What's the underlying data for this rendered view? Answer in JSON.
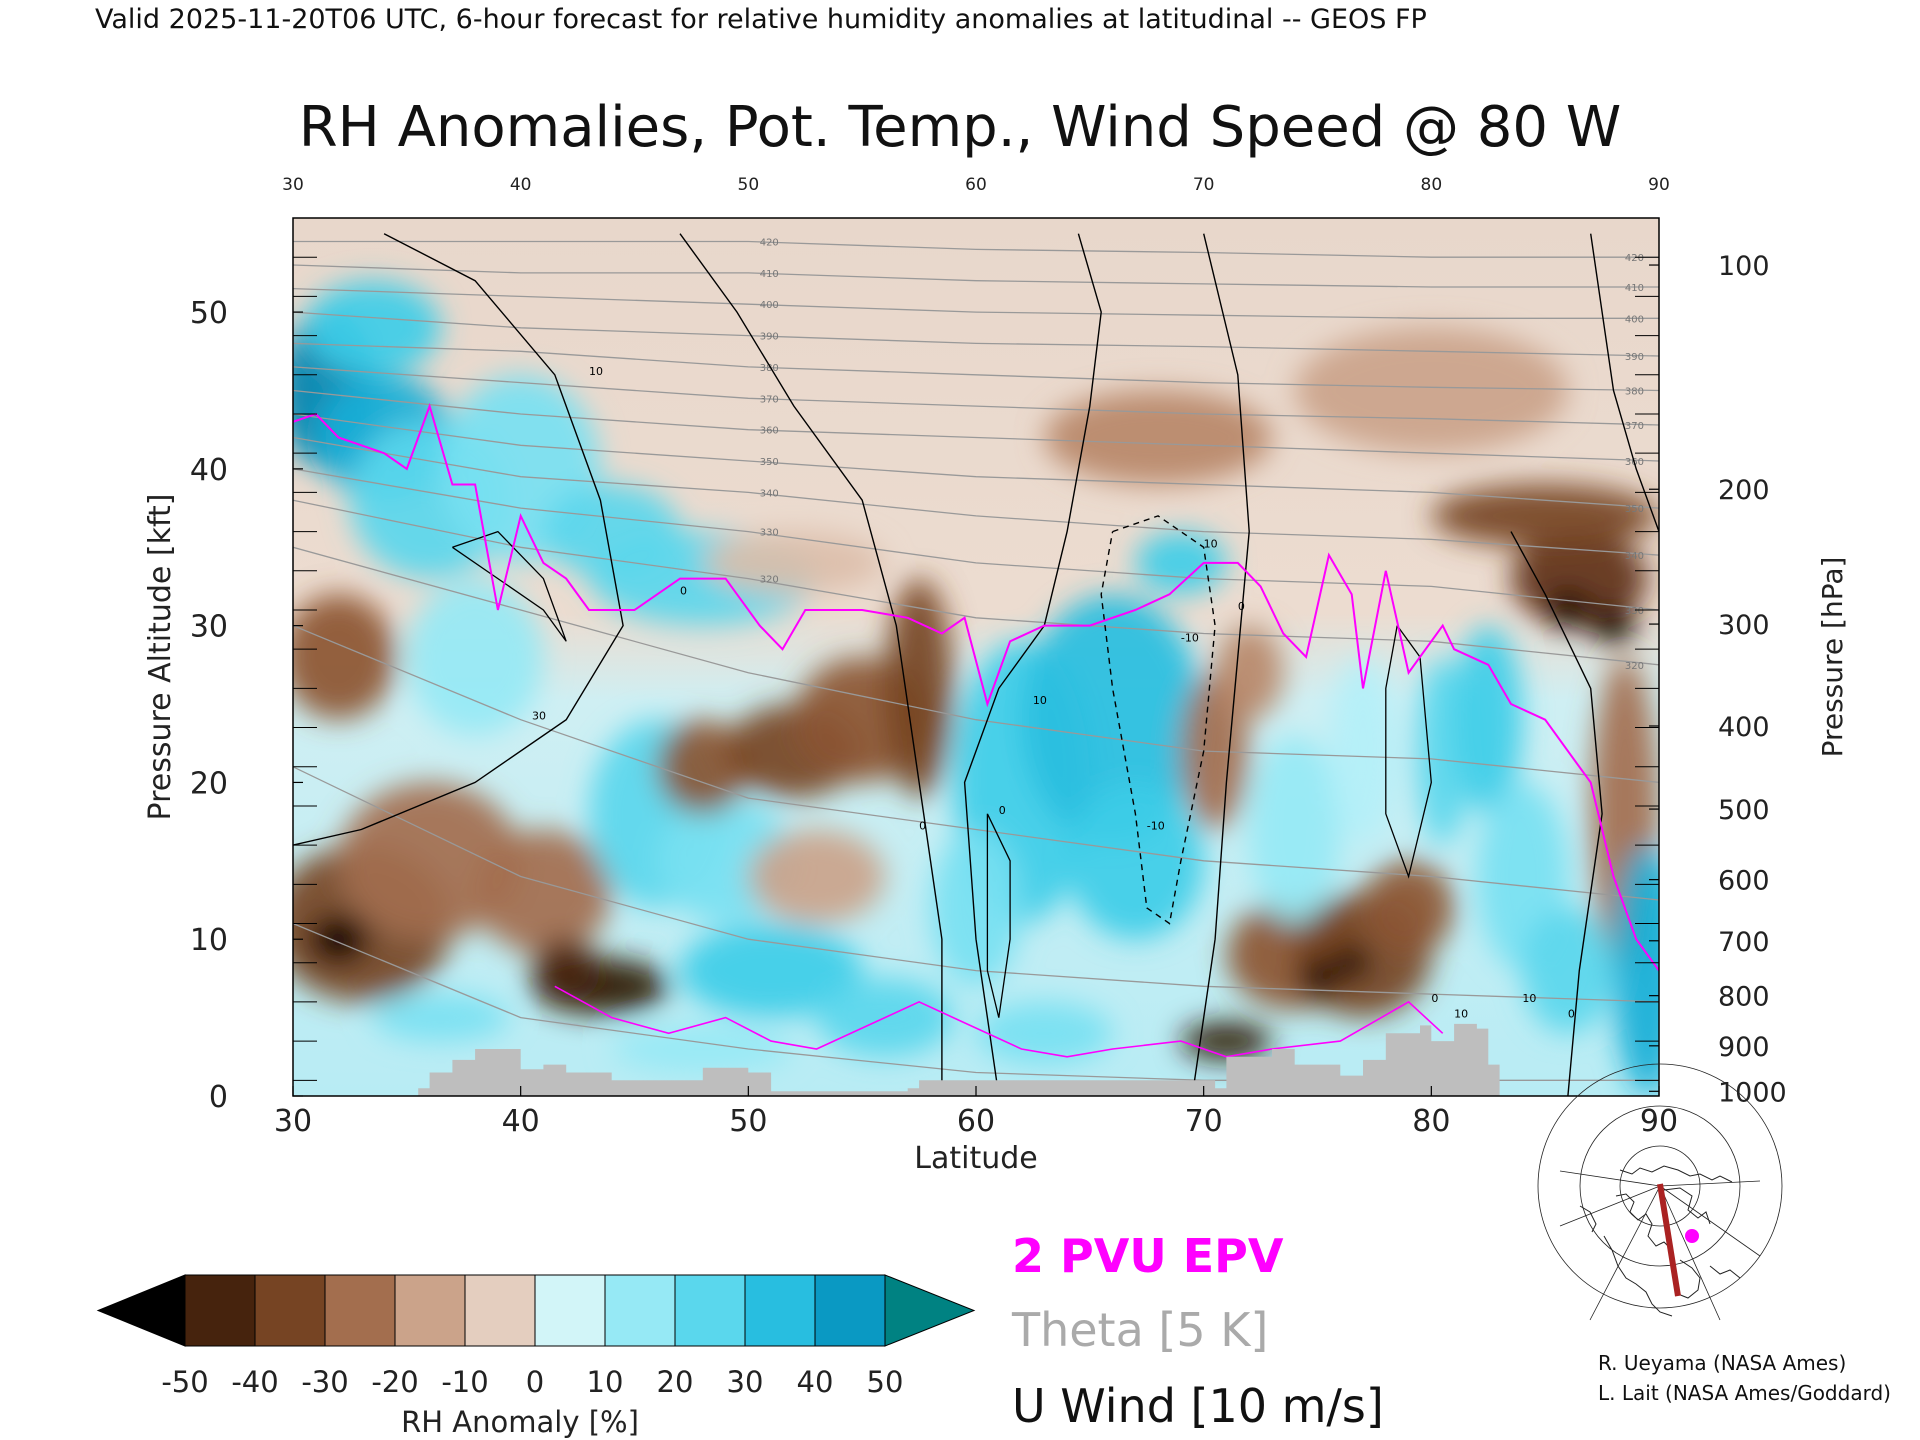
{
  "header": "Valid 2025-11-20T06 UTC, 6-hour forecast for relative humidity anomalies at latitudinal -- GEOS FP",
  "chart_data": {
    "type": "heatmap",
    "title": "RH Anomalies, Pot. Temp., Wind Speed @ 80 W",
    "xlabel": "Latitude",
    "ylabel": "Pressure Altitude [kft]",
    "y2label": "Pressure [hPa]",
    "xlim": [
      30,
      90
    ],
    "ylim": [
      0,
      56
    ],
    "x_ticks": [
      "30",
      "40",
      "50",
      "60",
      "70",
      "80",
      "90"
    ],
    "y_ticks": [
      "0",
      "10",
      "20",
      "30",
      "40",
      "50"
    ],
    "pressure_ticks": [
      {
        "hpa": "100",
        "kft": 53.0
      },
      {
        "hpa": "200",
        "kft": 38.7
      },
      {
        "hpa": "300",
        "kft": 30.1
      },
      {
        "hpa": "400",
        "kft": 23.6
      },
      {
        "hpa": "500",
        "kft": 18.3
      },
      {
        "hpa": "600",
        "kft": 13.8
      },
      {
        "hpa": "700",
        "kft": 9.9
      },
      {
        "hpa": "800",
        "kft": 6.4
      },
      {
        "hpa": "900",
        "kft": 3.2
      },
      {
        "hpa": "1000",
        "kft": 0.3
      }
    ],
    "theta_labels": [
      "420",
      "410",
      "400",
      "390",
      "380",
      "370",
      "360",
      "350",
      "340",
      "330",
      "320"
    ],
    "wind_labels": [
      "10",
      "0",
      "30",
      "0",
      "10",
      "0",
      "-10",
      "0",
      "10",
      "-10",
      "10",
      "0",
      "10",
      "0"
    ],
    "blobs": [
      {
        "x": 31.5,
        "y": 45,
        "rx": 2.2,
        "ry": 5,
        "v": 50
      },
      {
        "x": 34,
        "y": 42,
        "rx": 3,
        "ry": 4,
        "v": 40
      },
      {
        "x": 33.5,
        "y": 49,
        "rx": 3,
        "ry": 3,
        "v": 30
      },
      {
        "x": 36,
        "y": 38,
        "rx": 3.5,
        "ry": 5,
        "v": 25
      },
      {
        "x": 40,
        "y": 40,
        "rx": 3.5,
        "ry": 6,
        "v": 20
      },
      {
        "x": 44,
        "y": 36,
        "rx": 3,
        "ry": 3,
        "v": 25
      },
      {
        "x": 32,
        "y": 28,
        "rx": 2.5,
        "ry": 4,
        "v": -30
      },
      {
        "x": 38,
        "y": 28,
        "rx": 3,
        "ry": 5,
        "v": 15
      },
      {
        "x": 33,
        "y": 11,
        "rx": 4,
        "ry": 5,
        "v": -35
      },
      {
        "x": 36,
        "y": 15,
        "rx": 4,
        "ry": 5,
        "v": -25
      },
      {
        "x": 32,
        "y": 10,
        "rx": 1.3,
        "ry": 1.5,
        "v": -55
      },
      {
        "x": 41,
        "y": 13,
        "rx": 3,
        "ry": 4,
        "v": -25
      },
      {
        "x": 43.5,
        "y": 7,
        "rx": 3,
        "ry": 1.8,
        "v": -50
      },
      {
        "x": 42,
        "y": 8,
        "rx": 1.5,
        "ry": 2,
        "v": -45
      },
      {
        "x": 36.5,
        "y": 5,
        "rx": 3,
        "ry": 1.5,
        "v": 20
      },
      {
        "x": 48,
        "y": 3,
        "rx": 4,
        "ry": 1.5,
        "v": 15
      },
      {
        "x": 46,
        "y": 18,
        "rx": 3,
        "ry": 6,
        "v": 25
      },
      {
        "x": 49,
        "y": 15,
        "rx": 3,
        "ry": 4,
        "v": 20
      },
      {
        "x": 48,
        "y": 21,
        "rx": 2,
        "ry": 3,
        "v": -30
      },
      {
        "x": 52,
        "y": 22,
        "rx": 3,
        "ry": 3,
        "v": -35
      },
      {
        "x": 55,
        "y": 24,
        "rx": 3,
        "ry": 4,
        "v": -30
      },
      {
        "x": 57.5,
        "y": 26,
        "rx": 1.5,
        "ry": 7,
        "v": -35
      },
      {
        "x": 53,
        "y": 14,
        "rx": 3,
        "ry": 3,
        "v": -15
      },
      {
        "x": 51,
        "y": 8,
        "rx": 4,
        "ry": 3,
        "v": 30
      },
      {
        "x": 56,
        "y": 5,
        "rx": 3,
        "ry": 2.5,
        "v": 25
      },
      {
        "x": 48,
        "y": 33,
        "rx": 5,
        "ry": 3,
        "v": 25
      },
      {
        "x": 52,
        "y": 34,
        "rx": 4,
        "ry": 2,
        "v": -10
      },
      {
        "x": 62,
        "y": 20,
        "rx": 3,
        "ry": 9,
        "v": 30
      },
      {
        "x": 66,
        "y": 24,
        "rx": 4,
        "ry": 8,
        "v": 35
      },
      {
        "x": 67,
        "y": 15,
        "rx": 3,
        "ry": 5,
        "v": 30
      },
      {
        "x": 60,
        "y": 12,
        "rx": 2,
        "ry": 5,
        "v": 20
      },
      {
        "x": 63,
        "y": 4,
        "rx": 3,
        "ry": 2,
        "v": 20
      },
      {
        "x": 69,
        "y": 34,
        "rx": 2,
        "ry": 2,
        "v": 30
      },
      {
        "x": 70.5,
        "y": 22,
        "rx": 1.5,
        "ry": 5,
        "v": -25
      },
      {
        "x": 72,
        "y": 27,
        "rx": 1.5,
        "ry": 3,
        "v": -20
      },
      {
        "x": 74,
        "y": 9,
        "rx": 3,
        "ry": 3.5,
        "v": -30
      },
      {
        "x": 77,
        "y": 9,
        "rx": 3,
        "ry": 4,
        "v": -35
      },
      {
        "x": 79,
        "y": 12,
        "rx": 2,
        "ry": 3,
        "v": -30
      },
      {
        "x": 75,
        "y": 7.5,
        "rx": 0.8,
        "ry": 1.2,
        "v": -55
      },
      {
        "x": 76.5,
        "y": 8.5,
        "rx": 0.8,
        "ry": 1,
        "v": -55
      },
      {
        "x": 71,
        "y": 3.5,
        "rx": 2,
        "ry": 1.2,
        "v": -50
      },
      {
        "x": 74,
        "y": 17,
        "rx": 2,
        "ry": 6,
        "v": 15
      },
      {
        "x": 77,
        "y": 22,
        "rx": 1.5,
        "ry": 6,
        "v": 10
      },
      {
        "x": 80.5,
        "y": 22,
        "rx": 1.2,
        "ry": 6,
        "v": 25
      },
      {
        "x": 82.5,
        "y": 24,
        "rx": 1.5,
        "ry": 6,
        "v": 30
      },
      {
        "x": 84,
        "y": 14,
        "rx": 2,
        "ry": 6,
        "v": 20
      },
      {
        "x": 86.5,
        "y": 33,
        "rx": 3,
        "ry": 3,
        "v": -40
      },
      {
        "x": 86,
        "y": 31,
        "rx": 1,
        "ry": 1.2,
        "v": -55
      },
      {
        "x": 88,
        "y": 30,
        "rx": 1,
        "ry": 1.2,
        "v": -55
      },
      {
        "x": 85,
        "y": 37,
        "rx": 5,
        "ry": 2,
        "v": -35
      },
      {
        "x": 88.5,
        "y": 18,
        "rx": 1.5,
        "ry": 10,
        "v": -25
      },
      {
        "x": 89.5,
        "y": 8,
        "rx": 1.5,
        "ry": 8,
        "v": 40
      },
      {
        "x": 86,
        "y": 8,
        "rx": 2,
        "ry": 4,
        "v": 25
      },
      {
        "x": 68,
        "y": 42,
        "rx": 5,
        "ry": 3,
        "v": -20
      },
      {
        "x": 80,
        "y": 45,
        "rx": 6,
        "ry": 4,
        "v": -15
      }
    ],
    "epv_2pvu": [
      [
        30,
        43
      ],
      [
        31,
        43.5
      ],
      [
        32,
        42
      ],
      [
        34,
        41
      ],
      [
        35,
        40
      ],
      [
        36,
        44
      ],
      [
        37,
        39
      ],
      [
        38,
        39
      ],
      [
        39,
        31
      ],
      [
        40,
        37
      ],
      [
        41,
        34
      ],
      [
        42,
        33
      ],
      [
        43,
        31
      ],
      [
        45,
        31
      ],
      [
        47,
        33
      ],
      [
        49,
        33
      ],
      [
        50.5,
        30
      ],
      [
        51.5,
        28.5
      ],
      [
        52.5,
        31
      ],
      [
        55,
        31
      ],
      [
        57,
        30.5
      ],
      [
        58.5,
        29.5
      ],
      [
        59.5,
        30.5
      ],
      [
        60.5,
        25
      ],
      [
        61.5,
        29
      ],
      [
        63,
        30
      ],
      [
        65,
        30
      ],
      [
        67,
        31
      ],
      [
        68.5,
        32
      ],
      [
        70,
        34
      ],
      [
        71.5,
        34
      ],
      [
        72.5,
        32.5
      ],
      [
        73.5,
        29.5
      ],
      [
        74.5,
        28
      ],
      [
        75.5,
        34.5
      ],
      [
        76.5,
        32
      ],
      [
        77,
        26
      ],
      [
        78,
        33.5
      ],
      [
        79,
        27
      ],
      [
        80.5,
        30
      ],
      [
        81,
        28.5
      ],
      [
        82.5,
        27.5
      ],
      [
        83.5,
        25
      ],
      [
        85,
        24
      ],
      [
        86,
        22
      ],
      [
        87,
        20
      ],
      [
        88,
        14
      ],
      [
        89,
        10
      ],
      [
        90,
        8
      ]
    ],
    "epv_2pvu_low": [
      [
        41.5,
        7
      ],
      [
        44,
        5
      ],
      [
        46.5,
        4
      ],
      [
        49,
        5
      ],
      [
        51,
        3.5
      ],
      [
        53,
        3
      ],
      [
        56,
        5
      ],
      [
        57.5,
        6
      ],
      [
        59,
        5
      ],
      [
        62,
        3
      ],
      [
        64,
        2.5
      ],
      [
        66,
        3
      ],
      [
        69,
        3.5
      ],
      [
        71,
        2.5
      ],
      [
        73,
        3
      ],
      [
        76,
        3.5
      ],
      [
        79,
        6
      ],
      [
        80.5,
        4
      ]
    ],
    "u_wind_contours": [
      [
        [
          34,
          55
        ],
        [
          38,
          52
        ],
        [
          41.5,
          46
        ],
        [
          43.5,
          38
        ],
        [
          44.5,
          30
        ],
        [
          42,
          24
        ],
        [
          38,
          20
        ],
        [
          33,
          17
        ],
        [
          30,
          16
        ]
      ],
      [
        [
          47,
          55
        ],
        [
          49.5,
          50
        ],
        [
          52,
          44
        ],
        [
          55,
          38
        ],
        [
          56.5,
          30
        ],
        [
          57.5,
          20
        ],
        [
          58.5,
          10
        ],
        [
          58.5,
          0
        ]
      ],
      [
        [
          64.5,
          55
        ],
        [
          65.5,
          50
        ],
        [
          65,
          44
        ],
        [
          64,
          36
        ],
        [
          63,
          30
        ],
        [
          61,
          26
        ],
        [
          59.5,
          20
        ],
        [
          60,
          10
        ],
        [
          61,
          0
        ]
      ],
      [
        [
          70,
          55
        ],
        [
          71.5,
          46
        ],
        [
          72,
          36
        ],
        [
          71.5,
          28
        ],
        [
          71,
          20
        ],
        [
          70.5,
          10
        ],
        [
          69.5,
          0
        ]
      ],
      [
        [
          87,
          55
        ],
        [
          88,
          45
        ],
        [
          89,
          40
        ],
        [
          90,
          36
        ]
      ],
      [
        [
          83.5,
          36
        ],
        [
          85,
          32
        ],
        [
          87,
          26
        ],
        [
          87.5,
          18
        ],
        [
          86.5,
          8
        ],
        [
          86,
          0
        ]
      ]
    ],
    "u_wind_negative": [
      [
        [
          66,
          36
        ],
        [
          68,
          37
        ],
        [
          70,
          35
        ],
        [
          70.5,
          30
        ],
        [
          70,
          22
        ],
        [
          69,
          15
        ],
        [
          68.5,
          11
        ],
        [
          67.5,
          12
        ],
        [
          67,
          18
        ],
        [
          66,
          26
        ],
        [
          65.5,
          32
        ],
        [
          66,
          36
        ]
      ]
    ],
    "u_wind_small": [
      [
        [
          60.5,
          18
        ],
        [
          61.5,
          15
        ],
        [
          61.5,
          10
        ],
        [
          61,
          5
        ],
        [
          60.5,
          8
        ],
        [
          60.5,
          14
        ],
        [
          60.5,
          18
        ]
      ],
      [
        [
          37,
          35
        ],
        [
          39,
          33
        ],
        [
          41,
          31
        ],
        [
          42,
          29
        ],
        [
          41,
          33
        ],
        [
          39,
          36
        ],
        [
          37,
          35
        ]
      ],
      [
        [
          78.5,
          30
        ],
        [
          79.5,
          28
        ],
        [
          80,
          20
        ],
        [
          79,
          14
        ],
        [
          78,
          18
        ],
        [
          78,
          26
        ],
        [
          78.5,
          30
        ]
      ]
    ],
    "theta_lines": [
      {
        "theta": 420,
        "kft": [
          54.5,
          54.5,
          54.5,
          54.0,
          53.8,
          53.5,
          53.5
        ]
      },
      {
        "theta": 410,
        "kft": [
          53.0,
          52.5,
          52.5,
          52.0,
          51.8,
          51.6,
          51.6
        ]
      },
      {
        "theta": 400,
        "kft": [
          51.5,
          51.0,
          50.5,
          50.0,
          49.8,
          49.6,
          49.6
        ]
      },
      {
        "theta": 390,
        "kft": [
          50.0,
          49.0,
          48.5,
          48.0,
          47.8,
          47.5,
          47.2
        ]
      },
      {
        "theta": 380,
        "kft": [
          48.0,
          47.5,
          46.5,
          46.0,
          45.5,
          45.2,
          45.0
        ]
      },
      {
        "theta": 370,
        "kft": [
          46.5,
          45.5,
          44.5,
          44.0,
          43.5,
          43.2,
          42.8
        ]
      },
      {
        "theta": 360,
        "kft": [
          45.0,
          43.5,
          42.5,
          42.0,
          41.5,
          41.0,
          40.5
        ]
      },
      {
        "theta": 350,
        "kft": [
          43.5,
          41.5,
          40.5,
          39.5,
          39.0,
          38.5,
          37.5
        ]
      },
      {
        "theta": 340,
        "kft": [
          42.0,
          39.5,
          38.5,
          37.0,
          36.0,
          35.5,
          34.5
        ]
      },
      {
        "theta": 330,
        "kft": [
          40.0,
          37.5,
          36.0,
          34.0,
          33.0,
          32.5,
          31.0
        ]
      },
      {
        "theta": 320,
        "kft": [
          38.0,
          35.0,
          33.0,
          30.5,
          29.5,
          29.0,
          27.5
        ]
      },
      {
        "theta": 310,
        "kft": [
          35.0,
          31.0,
          27.0,
          24.0,
          22.0,
          21.5,
          20.0
        ]
      },
      {
        "theta": 300,
        "kft": [
          30.0,
          24.0,
          19.0,
          17.0,
          15.0,
          14.0,
          12.5
        ]
      },
      {
        "theta": 290,
        "kft": [
          21.0,
          14.0,
          10.0,
          8.0,
          7.0,
          6.5,
          6.0
        ]
      },
      {
        "theta": 280,
        "kft": [
          11.0,
          5.0,
          3.0,
          1.5,
          1.0,
          1.0,
          1.0
        ]
      }
    ],
    "terrain": [
      [
        35.5,
        0.5
      ],
      [
        36,
        1.5
      ],
      [
        37,
        2.3
      ],
      [
        38,
        3
      ],
      [
        39.5,
        3
      ],
      [
        40,
        1.7
      ],
      [
        41,
        2
      ],
      [
        42,
        1.5
      ],
      [
        44,
        1
      ],
      [
        46,
        1
      ],
      [
        48,
        1.8
      ],
      [
        50,
        1.5
      ],
      [
        51,
        0.3
      ],
      [
        57,
        0.5
      ],
      [
        57.5,
        1
      ],
      [
        62,
        1
      ],
      [
        70,
        1
      ],
      [
        70.5,
        0.5
      ],
      [
        71,
        2.5
      ],
      [
        73,
        3
      ],
      [
        74,
        2
      ],
      [
        75.5,
        2
      ],
      [
        76,
        1.3
      ],
      [
        77,
        2.3
      ],
      [
        78,
        4
      ],
      [
        79.5,
        4.5
      ],
      [
        80,
        3.5
      ],
      [
        81,
        4.6
      ],
      [
        82,
        4.3
      ],
      [
        82.5,
        2
      ],
      [
        83,
        0
      ]
    ],
    "legend_labels": [
      "-50",
      "-40",
      "-30",
      "-20",
      "-10",
      "0",
      "10",
      "20",
      "30",
      "40",
      "50"
    ],
    "colorbar_label": "RH Anomaly [%]"
  },
  "legend": {
    "epv": "2 PVU EPV",
    "theta": "Theta [5 K]",
    "wind": "U Wind [10 m/s]"
  },
  "credits": {
    "line1": "R. Ueyama (NASA Ames)",
    "line2": "L. Lait (NASA Ames/Goddard)"
  },
  "colors": {
    "epv": "#ff00ff",
    "theta": "#999999",
    "terrain": "#bebebe",
    "section_line": "#aa2222"
  }
}
